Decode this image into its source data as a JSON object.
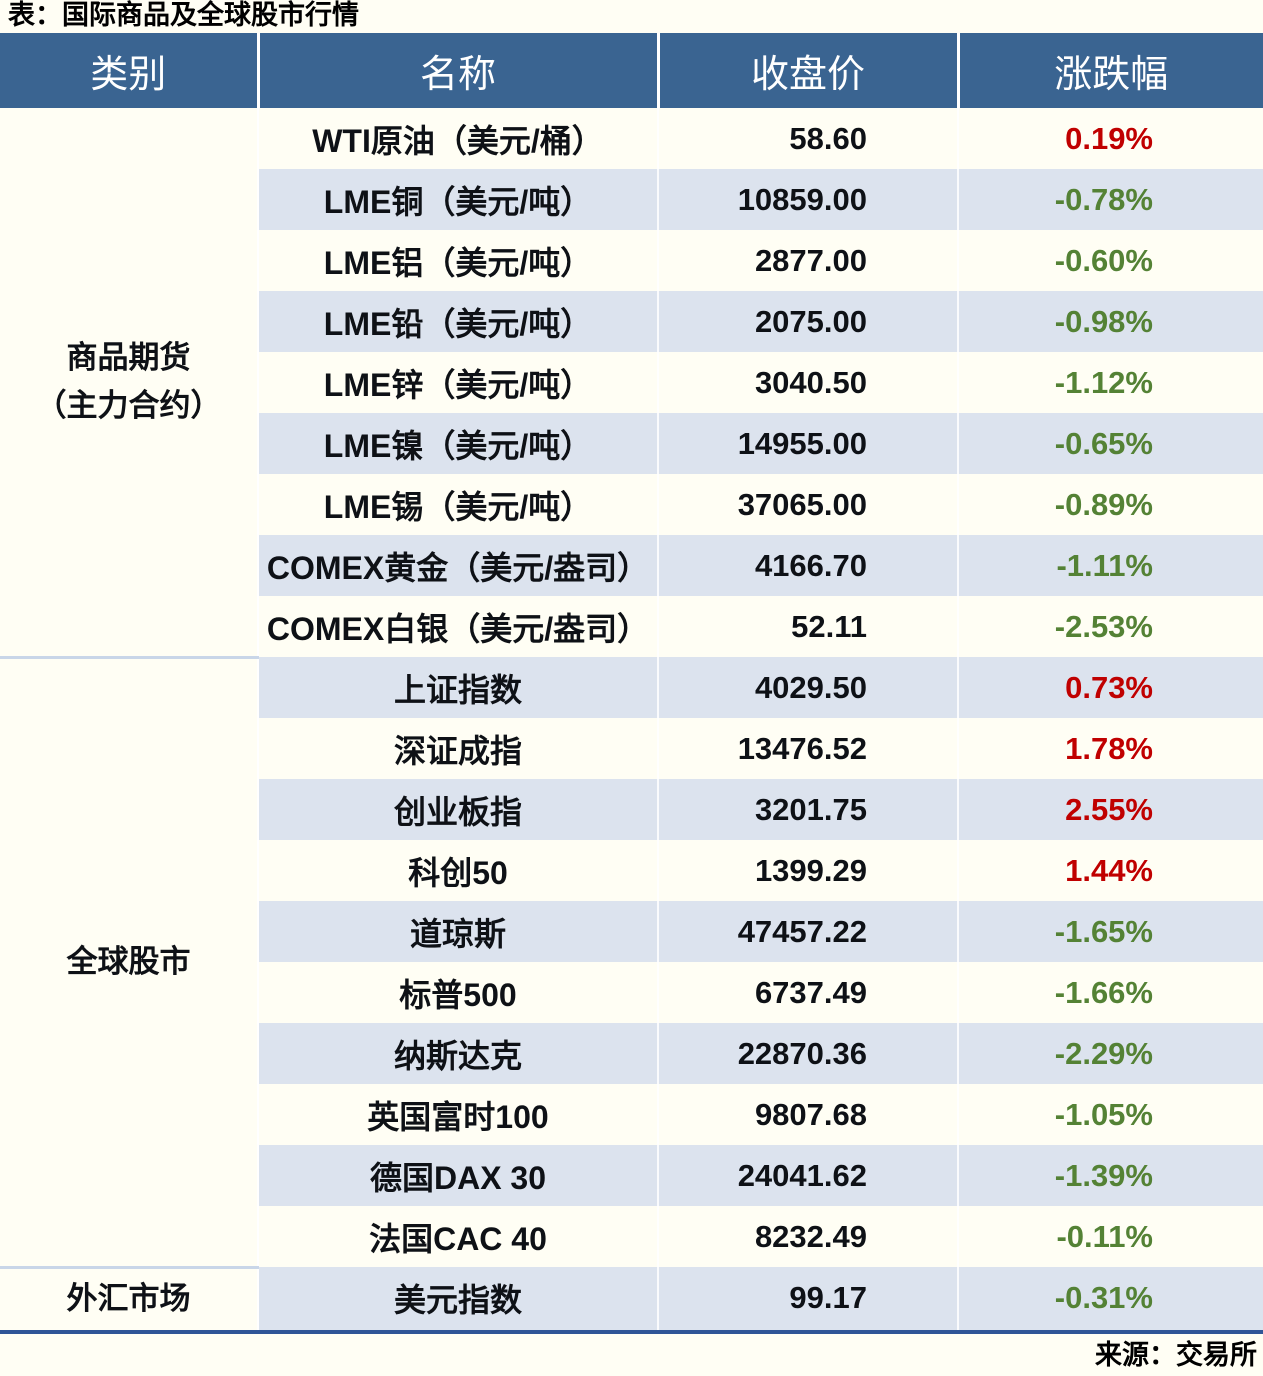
{
  "title": "表：国际商品及全球股市行情",
  "source": "来源：交易所",
  "colors": {
    "header_bg": "#3A6491",
    "stripe": "#DCE3EE",
    "row_white": "#FFFEF4",
    "up": "#C00000",
    "down": "#548235",
    "border_bottom": "#2F5597",
    "separator": "#C9D6E8"
  },
  "table": {
    "headers": [
      "类别",
      "名称",
      "收盘价",
      "涨跌幅"
    ],
    "sections": [
      {
        "category_lines": [
          "商品期货",
          "（主力合约）"
        ],
        "rows": [
          {
            "name": "WTI原油（美元/桶）",
            "close": "58.60",
            "change": "0.19%",
            "direction": "up"
          },
          {
            "name": "LME铜（美元/吨）",
            "close": "10859.00",
            "change": "-0.78%",
            "direction": "down"
          },
          {
            "name": "LME铝（美元/吨）",
            "close": "2877.00",
            "change": "-0.60%",
            "direction": "down"
          },
          {
            "name": "LME铅（美元/吨）",
            "close": "2075.00",
            "change": "-0.98%",
            "direction": "down"
          },
          {
            "name": "LME锌（美元/吨）",
            "close": "3040.50",
            "change": "-1.12%",
            "direction": "down"
          },
          {
            "name": "LME镍（美元/吨）",
            "close": "14955.00",
            "change": "-0.65%",
            "direction": "down"
          },
          {
            "name": "LME锡（美元/吨）",
            "close": "37065.00",
            "change": "-0.89%",
            "direction": "down"
          },
          {
            "name": "COMEX黄金（美元/盎司）",
            "close": "4166.70",
            "change": "-1.11%",
            "direction": "down"
          },
          {
            "name": "COMEX白银（美元/盎司）",
            "close": "52.11",
            "change": "-2.53%",
            "direction": "down"
          }
        ]
      },
      {
        "category_lines": [
          "全球股市"
        ],
        "rows": [
          {
            "name": "上证指数",
            "close": "4029.50",
            "change": "0.73%",
            "direction": "up"
          },
          {
            "name": "深证成指",
            "close": "13476.52",
            "change": "1.78%",
            "direction": "up"
          },
          {
            "name": "创业板指",
            "close": "3201.75",
            "change": "2.55%",
            "direction": "up"
          },
          {
            "name": "科创50",
            "close": "1399.29",
            "change": "1.44%",
            "direction": "up"
          },
          {
            "name": "道琼斯",
            "close": "47457.22",
            "change": "-1.65%",
            "direction": "down"
          },
          {
            "name": "标普500",
            "close": "6737.49",
            "change": "-1.66%",
            "direction": "down"
          },
          {
            "name": "纳斯达克",
            "close": "22870.36",
            "change": "-2.29%",
            "direction": "down"
          },
          {
            "name": "英国富时100",
            "close": "9807.68",
            "change": "-1.05%",
            "direction": "down"
          },
          {
            "name": "德国DAX 30",
            "close": "24041.62",
            "change": "-1.39%",
            "direction": "down"
          },
          {
            "name": "法国CAC 40",
            "close": "8232.49",
            "change": "-0.11%",
            "direction": "down"
          }
        ]
      },
      {
        "category_lines": [
          "外汇市场"
        ],
        "rows": [
          {
            "name": "美元指数",
            "close": "99.17",
            "change": "-0.31%",
            "direction": "down"
          }
        ]
      }
    ]
  }
}
